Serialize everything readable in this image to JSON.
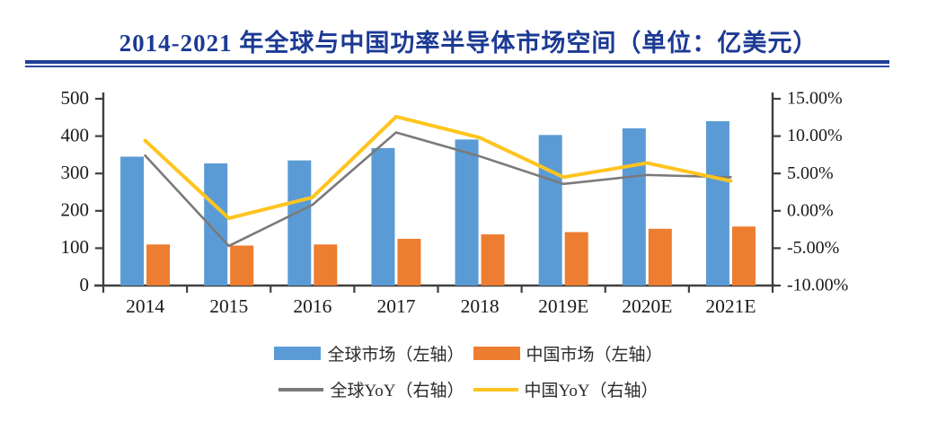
{
  "title": "2014-2021 年全球与中国功率半导体市场空间（单位：亿美元）",
  "colors": {
    "title_navy": "#1c3a94",
    "rule_navy": "#1e3f94",
    "axis": "#3f3f3f",
    "tick_text": "#1a1a1a",
    "global_bar_blue": "#5B9BD5",
    "china_bar_orange": "#ED7D31",
    "global_yoy_gray": "#7a7a7a",
    "china_yoy_yellow": "#FFC41E"
  },
  "chart_data": {
    "type": "bar",
    "subtype": "combo-bar-line-dual-axis",
    "title": "2014-2021 年全球与中国功率半导体市场空间（单位：亿美元）",
    "categories": [
      "2014",
      "2015",
      "2016",
      "2017",
      "2018",
      "2019E",
      "2020E",
      "2021E"
    ],
    "left_axis": {
      "min": 0,
      "max": 500,
      "step": 100,
      "ticks_top_to_bottom": [
        "500",
        "400",
        "300",
        "200",
        "100",
        "0"
      ]
    },
    "right_axis": {
      "min": -10,
      "max": 15,
      "step": 5,
      "ticks_top_to_bottom": [
        "15.00%",
        "10.00%",
        "5.00%",
        "0.00%",
        "-5.00%",
        "-10.00%"
      ]
    },
    "grid": "off",
    "legend_position": "bottom",
    "series": [
      {
        "key": "global-market",
        "name": "全球市场（左轴）",
        "type": "bar",
        "axis": "left",
        "color": "#5B9BD5",
        "values": [
          345,
          327,
          335,
          368,
          391,
          403,
          421,
          440
        ]
      },
      {
        "key": "china-market",
        "name": "中国市场（左轴）",
        "type": "bar",
        "axis": "left",
        "color": "#ED7D31",
        "values": [
          110,
          107,
          110,
          125,
          137,
          143,
          152,
          158
        ]
      },
      {
        "key": "global-yoy",
        "name": "全球YoY（右轴）",
        "type": "line",
        "axis": "right",
        "color": "#7a7a7a",
        "values": [
          7.4,
          -4.7,
          0.8,
          10.5,
          7.3,
          3.6,
          4.8,
          4.5
        ]
      },
      {
        "key": "china-yoy",
        "name": "中国YoY（右轴）",
        "type": "line",
        "axis": "right",
        "color": "#FFC41E",
        "values": [
          9.4,
          -1.0,
          1.8,
          12.6,
          9.8,
          4.5,
          6.4,
          4.0
        ]
      }
    ]
  }
}
